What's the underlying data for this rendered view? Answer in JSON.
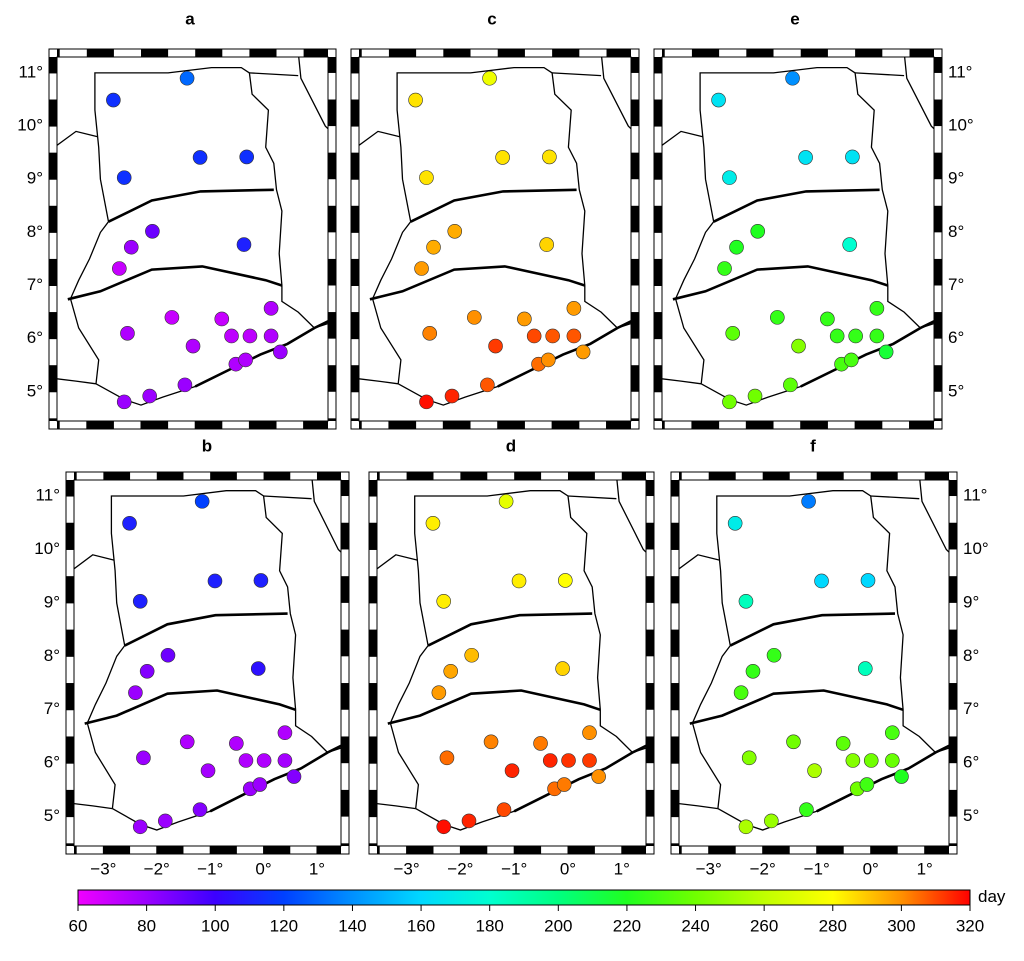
{
  "stations": {
    "lon": [
      -1.15,
      -2.51,
      -0.91,
      -0.05,
      -2.31,
      -1.79,
      -2.18,
      -0.1,
      -2.4,
      0.4,
      -2.25,
      -1.43,
      -0.51,
      -1.04,
      -0.33,
      0.01,
      0.4,
      0.57,
      -0.25,
      -0.07,
      -1.19,
      -1.84,
      -2.31
    ],
    "lat": [
      10.9,
      10.49,
      9.41,
      9.42,
      9.03,
      8.02,
      7.72,
      7.77,
      7.32,
      6.57,
      6.1,
      6.4,
      6.37,
      5.86,
      6.05,
      6.05,
      6.05,
      5.75,
      5.52,
      5.6,
      5.13,
      4.92,
      4.81
    ]
  },
  "map": {
    "xlim": [
      -3.55,
      1.45
    ],
    "ylim": [
      4.45,
      11.3
    ],
    "xticks": [
      {
        "value": -3,
        "label": "−3°"
      },
      {
        "value": -2,
        "label": "−2°"
      },
      {
        "value": -1,
        "label": "−1°"
      },
      {
        "value": 0,
        "label": "0°"
      },
      {
        "value": 1,
        "label": "1°"
      }
    ],
    "yticks": [
      {
        "value": 5,
        "label": "5°"
      },
      {
        "value": 6,
        "label": "6°"
      },
      {
        "value": 7,
        "label": "7°"
      },
      {
        "value": 8,
        "label": "8°"
      },
      {
        "value": 9,
        "label": "9°"
      },
      {
        "value": 10,
        "label": "10°"
      },
      {
        "value": 11,
        "label": "11°"
      }
    ]
  },
  "chart_data": [
    {
      "type": "scatter",
      "title": "a",
      "values": [
        130,
        115,
        115,
        115,
        115,
        90,
        80,
        110,
        70,
        75,
        75,
        70,
        70,
        75,
        72,
        72,
        75,
        80,
        75,
        75,
        80,
        80,
        80
      ]
    },
    {
      "type": "scatter",
      "title": "b",
      "values": [
        120,
        110,
        110,
        110,
        110,
        90,
        85,
        105,
        80,
        75,
        80,
        75,
        75,
        78,
        75,
        75,
        78,
        85,
        80,
        80,
        85,
        80,
        80
      ]
    },
    {
      "type": "scatter",
      "title": "c",
      "values": [
        275,
        285,
        285,
        285,
        285,
        295,
        295,
        288,
        298,
        298,
        302,
        300,
        298,
        312,
        310,
        308,
        308,
        298,
        305,
        300,
        308,
        315,
        318
      ]
    },
    {
      "type": "scatter",
      "title": "d",
      "values": [
        272,
        283,
        283,
        280,
        283,
        292,
        296,
        288,
        298,
        300,
        305,
        302,
        303,
        315,
        315,
        313,
        312,
        300,
        305,
        303,
        310,
        315,
        318
      ]
    },
    {
      "type": "scatter",
      "title": "e",
      "values": [
        140,
        165,
        165,
        165,
        170,
        220,
        220,
        180,
        225,
        225,
        235,
        225,
        225,
        245,
        225,
        225,
        225,
        215,
        230,
        230,
        235,
        240,
        240
      ]
    },
    {
      "type": "scatter",
      "title": "f",
      "values": [
        135,
        170,
        160,
        160,
        185,
        225,
        225,
        185,
        230,
        230,
        245,
        240,
        235,
        255,
        245,
        240,
        238,
        220,
        240,
        228,
        225,
        250,
        255
      ]
    }
  ],
  "colorbar": {
    "label": "day",
    "lim": [
      60,
      320
    ],
    "ticks": [
      60,
      80,
      100,
      120,
      140,
      160,
      180,
      200,
      220,
      240,
      260,
      280,
      300,
      320
    ],
    "colors": [
      "#f000ff",
      "#9b00ff",
      "#3c00ff",
      "#0040ff",
      "#0090ff",
      "#00d8ff",
      "#00ffd0",
      "#00ff80",
      "#20ff20",
      "#70ff00",
      "#c0ff00",
      "#ffff00",
      "#ff9000",
      "#ff0000"
    ]
  }
}
